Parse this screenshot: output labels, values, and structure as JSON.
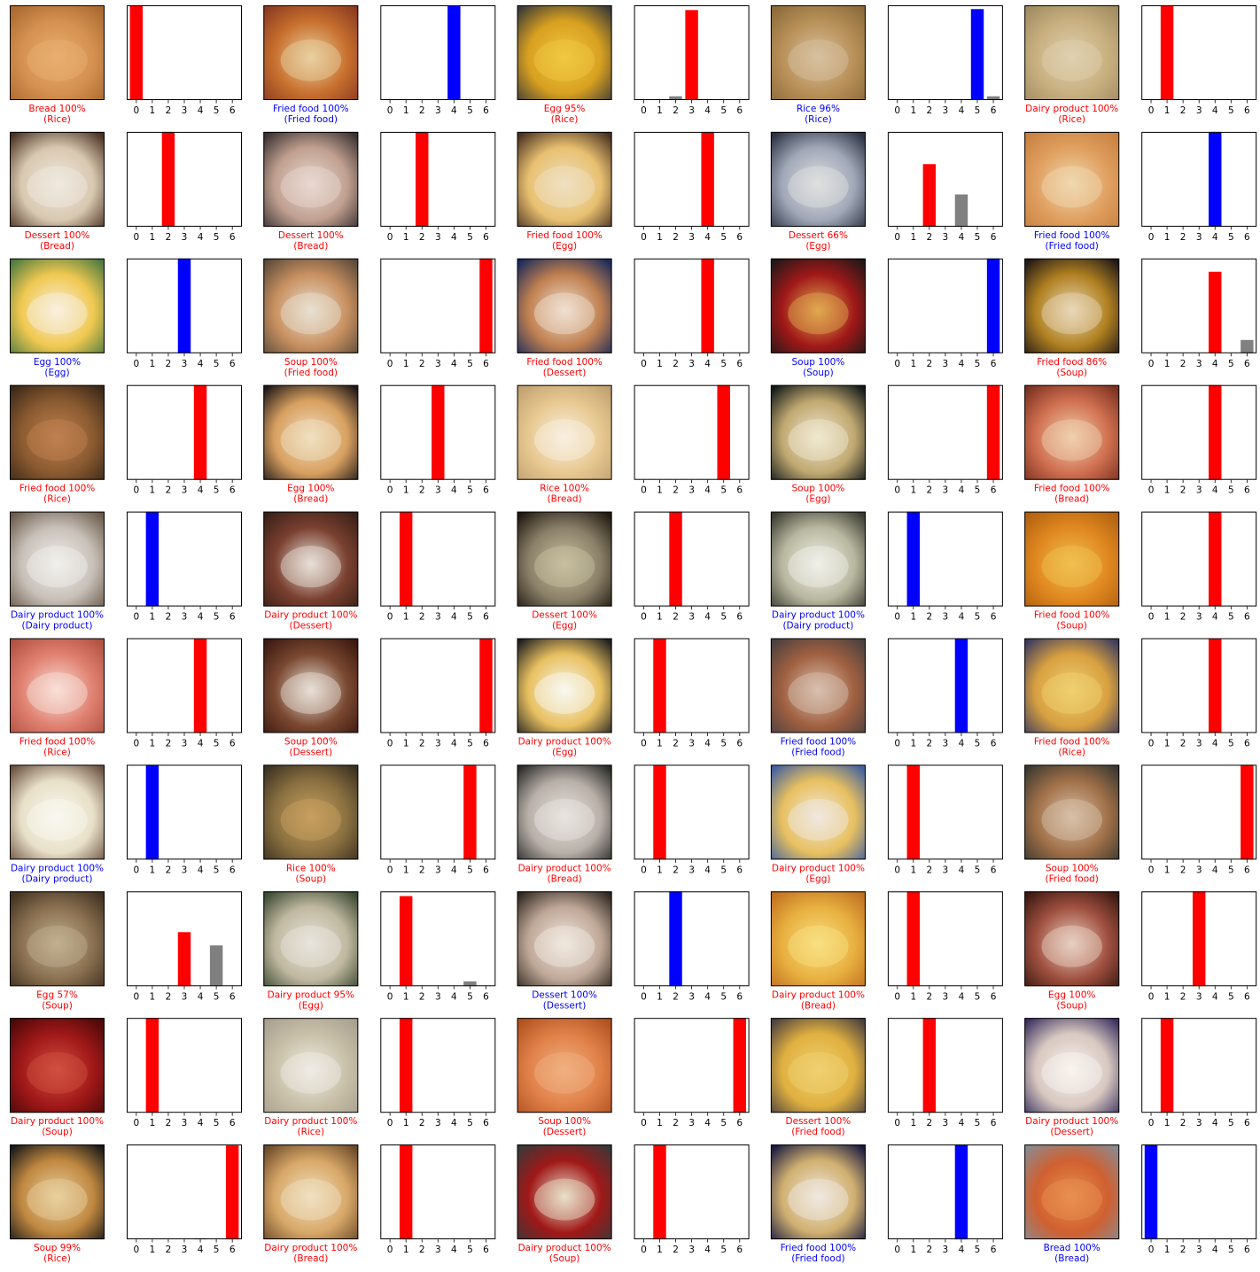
{
  "colors": {
    "correct": "#0000ff",
    "wrong": "#ff0000",
    "other": "#808080"
  },
  "chart_data": {
    "type": "bar",
    "categories": [
      "0",
      "1",
      "2",
      "3",
      "4",
      "5",
      "6"
    ],
    "ylim": [
      0,
      1
    ],
    "grid": false,
    "panels": [
      {
        "photo": "fried-rice",
        "caption": "Bread 100%",
        "actual": "(Rice)",
        "correct": false,
        "probs": [
          1,
          0,
          0,
          0,
          0,
          0,
          0
        ]
      },
      {
        "photo": "fried-fish-and-chips",
        "caption": "Fried food 100%",
        "actual": "(Fried food)",
        "correct": true,
        "probs": [
          0,
          0,
          0,
          0,
          1,
          0,
          0
        ]
      },
      {
        "photo": "saffron-rice-pot",
        "caption": "Egg 95%",
        "actual": "(Rice)",
        "correct": false,
        "probs": [
          0,
          0,
          0.04,
          0.95,
          0,
          0,
          0
        ]
      },
      {
        "photo": "rice-box",
        "caption": "Rice 96%",
        "actual": "(Rice)",
        "correct": true,
        "probs": [
          0,
          0,
          0,
          0,
          0,
          0.96,
          0.04
        ]
      },
      {
        "photo": "mixed-rice",
        "caption": "Dairy product 100%",
        "actual": "(Rice)",
        "correct": false,
        "probs": [
          0,
          1,
          0,
          0,
          0,
          0,
          0
        ]
      },
      {
        "photo": "toast-slice",
        "caption": "Dessert 100%",
        "actual": "(Bread)",
        "correct": false,
        "probs": [
          0,
          0,
          1,
          0,
          0,
          0,
          0
        ]
      },
      {
        "photo": "burrito",
        "caption": "Dessert 100%",
        "actual": "(Bread)",
        "correct": false,
        "probs": [
          0,
          0,
          1,
          0,
          0,
          0,
          0
        ]
      },
      {
        "photo": "deviled-eggs",
        "caption": "Fried food 100%",
        "actual": "(Egg)",
        "correct": false,
        "probs": [
          0,
          0,
          0,
          0,
          1,
          0,
          0
        ]
      },
      {
        "photo": "eggs-with-bacon",
        "caption": "Dessert 66%",
        "actual": "(Egg)",
        "correct": false,
        "probs": [
          0,
          0,
          0.66,
          0,
          0.34,
          0,
          0
        ]
      },
      {
        "photo": "spring-rolls",
        "caption": "Fried food 100%",
        "actual": "(Fried food)",
        "correct": true,
        "probs": [
          0,
          0,
          0,
          0,
          1,
          0,
          0
        ]
      },
      {
        "photo": "deviled-egg",
        "caption": "Egg 100%",
        "actual": "(Egg)",
        "correct": true,
        "probs": [
          0,
          0,
          0,
          1,
          0,
          0,
          0
        ]
      },
      {
        "photo": "fried-fish-plate",
        "caption": "Soup 100%",
        "actual": "(Fried food)",
        "correct": false,
        "probs": [
          0,
          0,
          0,
          0,
          0,
          0,
          1
        ]
      },
      {
        "photo": "pastry-cream",
        "caption": "Fried food 100%",
        "actual": "(Dessert)",
        "correct": false,
        "probs": [
          0,
          0,
          0,
          0,
          1,
          0,
          0
        ]
      },
      {
        "photo": "miso-soup-bowl",
        "caption": "Soup 100%",
        "actual": "(Soup)",
        "correct": true,
        "probs": [
          0,
          0,
          0,
          0,
          0,
          0,
          1
        ]
      },
      {
        "photo": "pumpkin-soup",
        "caption": "Fried food 86%",
        "actual": "(Soup)",
        "correct": false,
        "probs": [
          0,
          0,
          0,
          0,
          0.86,
          0,
          0.14
        ]
      },
      {
        "photo": "noodle-salad",
        "caption": "Fried food 100%",
        "actual": "(Rice)",
        "correct": false,
        "probs": [
          0,
          0,
          0,
          0,
          1,
          0,
          0
        ]
      },
      {
        "photo": "pizza",
        "caption": "Egg 100%",
        "actual": "(Bread)",
        "correct": false,
        "probs": [
          0,
          0,
          0,
          1,
          0,
          0,
          0
        ]
      },
      {
        "photo": "toast-bread",
        "caption": "Rice 100%",
        "actual": "(Bread)",
        "correct": false,
        "probs": [
          0,
          0,
          0,
          0,
          0,
          1,
          0
        ]
      },
      {
        "photo": "omelette-plate",
        "caption": "Soup 100%",
        "actual": "(Egg)",
        "correct": false,
        "probs": [
          0,
          0,
          0,
          0,
          0,
          0,
          1
        ]
      },
      {
        "photo": "flatbread-plate",
        "caption": "Fried food 100%",
        "actual": "(Bread)",
        "correct": false,
        "probs": [
          0,
          0,
          0,
          0,
          1,
          0,
          0
        ]
      },
      {
        "photo": "whipped-cream-glass",
        "caption": "Dairy product 100%",
        "actual": "(Dairy product)",
        "correct": true,
        "probs": [
          0,
          1,
          0,
          0,
          0,
          0,
          0
        ]
      },
      {
        "photo": "chocolate-cake",
        "caption": "Dairy product 100%",
        "actual": "(Dessert)",
        "correct": false,
        "probs": [
          0,
          1,
          0,
          0,
          0,
          0,
          0
        ]
      },
      {
        "photo": "egg-plate-dark",
        "caption": "Dessert 100%",
        "actual": "(Egg)",
        "correct": false,
        "probs": [
          0,
          0,
          1,
          0,
          0,
          0,
          0
        ]
      },
      {
        "photo": "cheese-plate",
        "caption": "Dairy product 100%",
        "actual": "(Dairy product)",
        "correct": true,
        "probs": [
          0,
          1,
          0,
          0,
          0,
          0,
          0
        ]
      },
      {
        "photo": "vegetable-soup",
        "caption": "Fried food 100%",
        "actual": "(Soup)",
        "correct": false,
        "probs": [
          0,
          0,
          0,
          0,
          1,
          0,
          0
        ]
      },
      {
        "photo": "red-rice-platter",
        "caption": "Fried food 100%",
        "actual": "(Rice)",
        "correct": false,
        "probs": [
          0,
          0,
          0,
          0,
          1,
          0,
          0
        ]
      },
      {
        "photo": "cake-slice",
        "caption": "Soup 100%",
        "actual": "(Dessert)",
        "correct": false,
        "probs": [
          0,
          0,
          0,
          0,
          0,
          0,
          1
        ]
      },
      {
        "photo": "deviled-eggs-tray",
        "caption": "Dairy product 100%",
        "actual": "(Egg)",
        "correct": false,
        "probs": [
          0,
          1,
          0,
          0,
          0,
          0,
          0
        ]
      },
      {
        "photo": "fried-chicken",
        "caption": "Fried food 100%",
        "actual": "(Fried food)",
        "correct": true,
        "probs": [
          0,
          0,
          0,
          0,
          1,
          0,
          0
        ]
      },
      {
        "photo": "paella",
        "caption": "Fried food 100%",
        "actual": "(Rice)",
        "correct": false,
        "probs": [
          0,
          0,
          0,
          0,
          1,
          0,
          0
        ]
      },
      {
        "photo": "cheese-slices",
        "caption": "Dairy product 100%",
        "actual": "(Dairy product)",
        "correct": true,
        "probs": [
          0,
          1,
          0,
          0,
          0,
          0,
          0
        ]
      },
      {
        "photo": "egg-drop-soup",
        "caption": "Rice 100%",
        "actual": "(Soup)",
        "correct": false,
        "probs": [
          0,
          0,
          0,
          0,
          0,
          1,
          0
        ]
      },
      {
        "photo": "wrap",
        "caption": "Dairy product 100%",
        "actual": "(Bread)",
        "correct": false,
        "probs": [
          0,
          1,
          0,
          0,
          0,
          0,
          0
        ]
      },
      {
        "photo": "omelette-with-beans",
        "caption": "Dairy product 100%",
        "actual": "(Egg)",
        "correct": false,
        "probs": [
          0,
          1,
          0,
          0,
          0,
          0,
          0
        ]
      },
      {
        "photo": "onion-rings",
        "caption": "Soup 100%",
        "actual": "(Fried food)",
        "correct": false,
        "probs": [
          0,
          0,
          0,
          0,
          0,
          0,
          1
        ]
      },
      {
        "photo": "noodle-soup",
        "caption": "Egg 57%",
        "actual": "(Soup)",
        "correct": false,
        "probs": [
          0,
          0,
          0,
          0.57,
          0,
          0.43,
          0
        ]
      },
      {
        "photo": "egg-dish-plate",
        "caption": "Dairy product 95%",
        "actual": "(Egg)",
        "correct": false,
        "probs": [
          0,
          0.95,
          0,
          0,
          0,
          0.05,
          0
        ]
      },
      {
        "photo": "plated-dessert",
        "caption": "Dessert 100%",
        "actual": "(Dessert)",
        "correct": true,
        "probs": [
          0,
          0,
          1,
          0,
          0,
          0,
          0
        ]
      },
      {
        "photo": "grilled-sandwich",
        "caption": "Dairy product 100%",
        "actual": "(Bread)",
        "correct": false,
        "probs": [
          0,
          1,
          0,
          0,
          0,
          0,
          0
        ]
      },
      {
        "photo": "soup-spoon",
        "caption": "Egg 100%",
        "actual": "(Soup)",
        "correct": false,
        "probs": [
          0,
          0,
          0,
          1,
          0,
          0,
          0
        ]
      },
      {
        "photo": "red-soup-bowl",
        "caption": "Dairy product 100%",
        "actual": "(Soup)",
        "correct": false,
        "probs": [
          0,
          1,
          0,
          0,
          0,
          0,
          0
        ]
      },
      {
        "photo": "risotto",
        "caption": "Dairy product 100%",
        "actual": "(Rice)",
        "correct": false,
        "probs": [
          0,
          1,
          0,
          0,
          0,
          0,
          0
        ]
      },
      {
        "photo": "orange-dessert",
        "caption": "Soup 100%",
        "actual": "(Dessert)",
        "correct": false,
        "probs": [
          0,
          0,
          0,
          0,
          0,
          0,
          1
        ]
      },
      {
        "photo": "french-fries",
        "caption": "Dessert 100%",
        "actual": "(Fried food)",
        "correct": false,
        "probs": [
          0,
          0,
          1,
          0,
          0,
          0,
          0
        ]
      },
      {
        "photo": "cannoli-plate",
        "caption": "Dairy product 100%",
        "actual": "(Dessert)",
        "correct": false,
        "probs": [
          0,
          1,
          0,
          0,
          0,
          0,
          0
        ]
      },
      {
        "photo": "rice-bowl",
        "caption": "Soup 99%",
        "actual": "(Rice)",
        "correct": false,
        "probs": [
          0,
          0,
          0,
          0,
          0.01,
          0,
          0.99
        ]
      },
      {
        "photo": "garlic-bread",
        "caption": "Dairy product 100%",
        "actual": "(Bread)",
        "correct": false,
        "probs": [
          0,
          1,
          0,
          0,
          0,
          0,
          0
        ]
      },
      {
        "photo": "miso-soup",
        "caption": "Dairy product 100%",
        "actual": "(Soup)",
        "correct": false,
        "probs": [
          0,
          1,
          0,
          0,
          0,
          0,
          0
        ]
      },
      {
        "photo": "samosa-plate",
        "caption": "Fried food 100%",
        "actual": "(Fried food)",
        "correct": true,
        "probs": [
          0,
          0,
          0,
          0,
          1,
          0,
          0
        ]
      },
      {
        "photo": "bread-on-foil",
        "caption": "Bread 100%",
        "actual": "(Bread)",
        "correct": true,
        "probs": [
          1,
          0,
          0,
          0,
          0,
          0,
          0
        ]
      }
    ]
  }
}
